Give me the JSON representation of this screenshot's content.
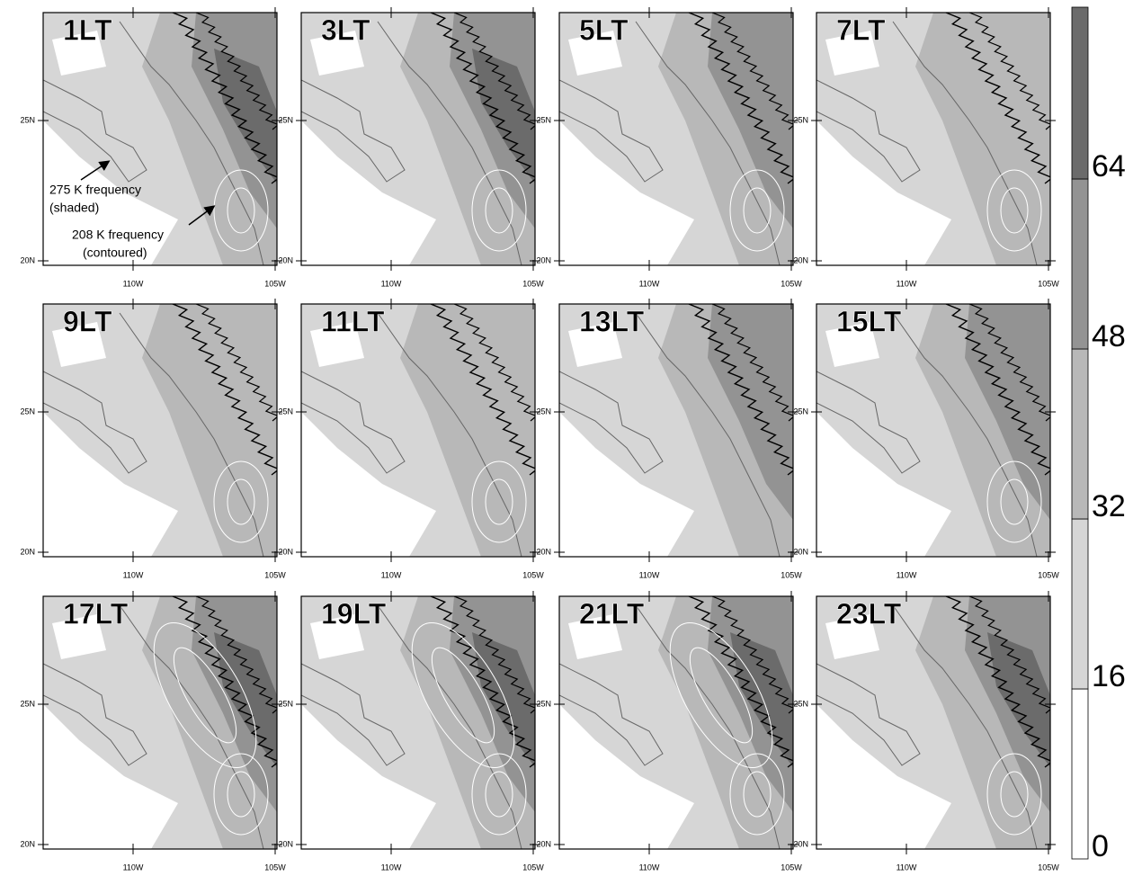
{
  "panels": [
    {
      "label": "1LT"
    },
    {
      "label": "3LT"
    },
    {
      "label": "5LT"
    },
    {
      "label": "7LT"
    },
    {
      "label": "9LT"
    },
    {
      "label": "11LT"
    },
    {
      "label": "13LT"
    },
    {
      "label": "15LT"
    },
    {
      "label": "17LT"
    },
    {
      "label": "19LT"
    },
    {
      "label": "21LT"
    },
    {
      "label": "23LT"
    }
  ],
  "axes": {
    "lat_labels": [
      "25N",
      "20N"
    ],
    "lon_labels": [
      "110W",
      "105W"
    ]
  },
  "annotations": {
    "shaded": [
      "275 K frequency",
      "(shaded)"
    ],
    "contoured": [
      "208 K frequency",
      "(contoured)"
    ]
  },
  "colorbar": {
    "levels": [
      0,
      16,
      32,
      48,
      64
    ],
    "colors": [
      "#ffffff",
      "#d6d6d6",
      "#b8b8b8",
      "#939393",
      "#6b6b6b"
    ]
  }
}
